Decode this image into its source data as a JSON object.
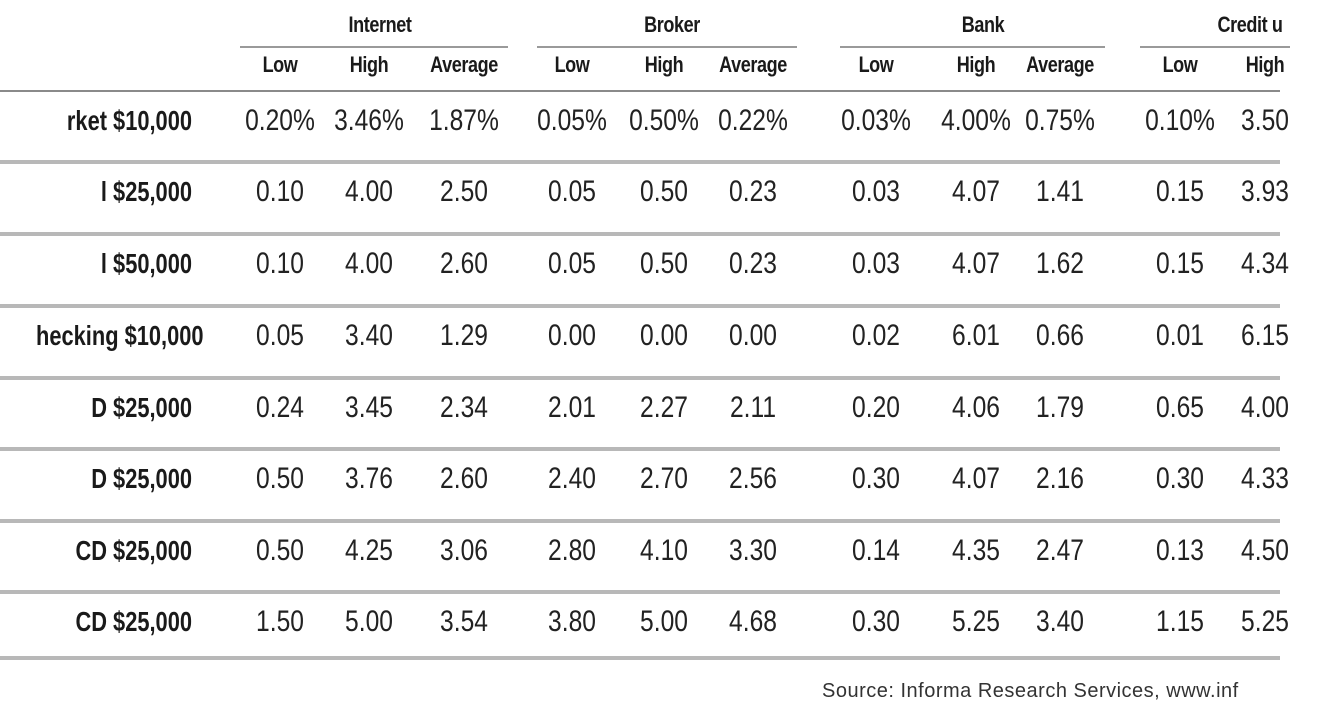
{
  "chart_data": {
    "type": "table",
    "groups": [
      "Internet",
      "Broker",
      "Bank",
      "Credit u"
    ],
    "subheaders": [
      "Low",
      "High",
      "Average"
    ],
    "rows": [
      {
        "label": "rket $10,000",
        "values": [
          "0.20%",
          "3.46%",
          "1.87%",
          "0.05%",
          "0.50%",
          "0.22%",
          "0.03%",
          "4.00%",
          "0.75%",
          "0.10%",
          "3.50"
        ]
      },
      {
        "label": "l $25,000",
        "values": [
          "0.10",
          "4.00",
          "2.50",
          "0.05",
          "0.50",
          "0.23",
          "0.03",
          "4.07",
          "1.41",
          "0.15",
          "3.93"
        ]
      },
      {
        "label": "l $50,000",
        "values": [
          "0.10",
          "4.00",
          "2.60",
          "0.05",
          "0.50",
          "0.23",
          "0.03",
          "4.07",
          "1.62",
          "0.15",
          "4.34"
        ]
      },
      {
        "label": "hecking $10,000",
        "values": [
          "0.05",
          "3.40",
          "1.29",
          "0.00",
          "0.00",
          "0.00",
          "0.02",
          "6.01",
          "0.66",
          "0.01",
          "6.15"
        ]
      },
      {
        "label": "D $25,000",
        "values": [
          "0.24",
          "3.45",
          "2.34",
          "2.01",
          "2.27",
          "2.11",
          "0.20",
          "4.06",
          "1.79",
          "0.65",
          "4.00"
        ]
      },
      {
        "label": "D $25,000",
        "values": [
          "0.50",
          "3.76",
          "2.60",
          "2.40",
          "2.70",
          "2.56",
          "0.30",
          "4.07",
          "2.16",
          "0.30",
          "4.33"
        ]
      },
      {
        "label": "CD $25,000",
        "values": [
          "0.50",
          "4.25",
          "3.06",
          "2.80",
          "4.10",
          "3.30",
          "0.14",
          "4.35",
          "2.47",
          "0.13",
          "4.50"
        ]
      },
      {
        "label": "CD $25,000",
        "values": [
          "1.50",
          "5.00",
          "3.54",
          "3.80",
          "5.00",
          "4.68",
          "0.30",
          "5.25",
          "3.40",
          "1.15",
          "5.25"
        ]
      }
    ],
    "source": "Source: Informa Research Services, www.inf"
  }
}
